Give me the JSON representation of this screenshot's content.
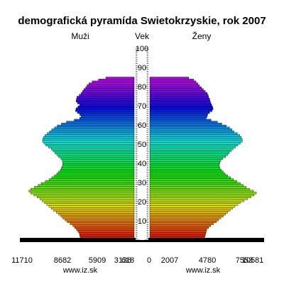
{
  "chart_data": {
    "type": "bar",
    "orientation": "horizontal-pyramid",
    "title": "demografická pyramída Swietokrzyskie, rok 2007",
    "left_label": "Muži",
    "center_label": "Vek",
    "right_label": "Ženy",
    "male_ticks": [
      "11710",
      "8682",
      "5909",
      "3136",
      "618"
    ],
    "female_ticks": [
      "0",
      "2007",
      "4780",
      "7553",
      "10581"
    ],
    "source_left": "www.iz.sk",
    "source_right": "www.iz.sk",
    "age_labels": [
      "10",
      "20",
      "30",
      "40",
      "50",
      "60",
      "70",
      "80",
      "90",
      "100"
    ],
    "xlim_male": [
      0,
      12400
    ],
    "xlim_female": [
      0,
      11600
    ],
    "ages": [
      0,
      1,
      2,
      3,
      4,
      5,
      6,
      7,
      8,
      9,
      10,
      11,
      12,
      13,
      14,
      15,
      16,
      17,
      18,
      19,
      20,
      21,
      22,
      23,
      24,
      25,
      26,
      27,
      28,
      29,
      30,
      31,
      32,
      33,
      34,
      35,
      36,
      37,
      38,
      39,
      40,
      41,
      42,
      43,
      44,
      45,
      46,
      47,
      48,
      49,
      50,
      51,
      52,
      53,
      54,
      55,
      56,
      57,
      58,
      59,
      60,
      61,
      62,
      63,
      64,
      65,
      66,
      67,
      68,
      69,
      70,
      71,
      72,
      73,
      74,
      75,
      76,
      77,
      78,
      79,
      80,
      81,
      82,
      83,
      84,
      85,
      86,
      87,
      88,
      89,
      90,
      91,
      92,
      93,
      94,
      95,
      96,
      97,
      98,
      99,
      100
    ],
    "series": [
      {
        "name": "Muži",
        "values": [
          12000,
          5900,
          5950,
          6000,
          6150,
          6300,
          6500,
          6700,
          7000,
          7300,
          7550,
          7800,
          8000,
          8250,
          8500,
          8800,
          9050,
          9300,
          9550,
          9800,
          10050,
          10300,
          10600,
          10950,
          11300,
          11500,
          11300,
          10900,
          10500,
          10150,
          9700,
          9300,
          9000,
          8700,
          8450,
          8250,
          8050,
          7950,
          7850,
          7800,
          7800,
          7850,
          8000,
          8250,
          8450,
          8650,
          8850,
          9050,
          9350,
          9650,
          9850,
          10000,
          10000,
          9900,
          9750,
          9500,
          9250,
          9000,
          8700,
          8400,
          7950,
          7400,
          6550,
          5950,
          5800,
          5950,
          6200,
          6400,
          6350,
          6150,
          5950,
          6200,
          6350,
          6300,
          6250,
          6000,
          5800,
          5650,
          5500,
          5300,
          5150,
          4950,
          4600,
          3900,
          3100,
          0,
          0,
          0,
          0,
          0,
          0,
          0,
          0,
          0,
          0,
          0,
          0,
          0,
          0,
          0,
          0
        ]
      },
      {
        "name": "Ženy",
        "values": [
          11400,
          5650,
          5700,
          5750,
          5800,
          5850,
          6050,
          6250,
          6550,
          6850,
          7050,
          7300,
          7550,
          7800,
          8000,
          8250,
          8500,
          8750,
          9050,
          9300,
          9700,
          10050,
          10400,
          10700,
          10950,
          10650,
          10250,
          9900,
          9600,
          9300,
          8950,
          8600,
          8300,
          8000,
          7750,
          7550,
          7350,
          7200,
          7150,
          7150,
          7200,
          7300,
          7500,
          7800,
          8000,
          8150,
          8350,
          8550,
          8800,
          9050,
          9300,
          9500,
          9500,
          9400,
          9250,
          9000,
          8650,
          8450,
          8200,
          7850,
          7400,
          6950,
          6300,
          5800,
          5900,
          5950,
          6150,
          6400,
          6500,
          6450,
          6350,
          6250,
          6200,
          6150,
          6050,
          6000,
          5900,
          5700,
          5500,
          5300,
          5100,
          4950,
          4750,
          4500,
          4000,
          0,
          0,
          0,
          0,
          0,
          0,
          0,
          0,
          0,
          0,
          0,
          0,
          0,
          0,
          0,
          0
        ]
      }
    ]
  }
}
